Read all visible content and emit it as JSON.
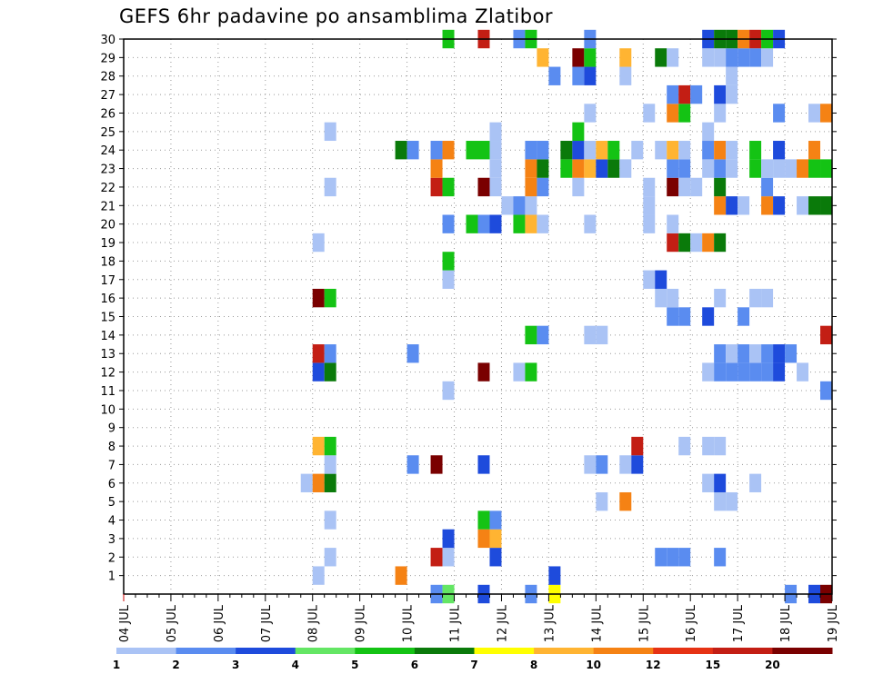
{
  "chart_data": {
    "type": "heatmap",
    "title": "GEFS 6hr padavine po ansamblima Zlatibor",
    "xlabel": "",
    "ylabel": "",
    "x_ticks": [
      "04 JUL",
      "05 JUL",
      "06 JUL",
      "07 JUL",
      "08 JUL",
      "09 JUL",
      "10 JUL",
      "11 JUL",
      "12 JUL",
      "13 JUL",
      "14 JUL",
      "15 JUL",
      "16 JUL",
      "17 JUL",
      "18 JUL",
      "19 JUL"
    ],
    "x_start": "04 JUL 00Z",
    "x_step_hours": 6,
    "y_ticks": [
      1,
      2,
      3,
      4,
      5,
      6,
      7,
      8,
      9,
      10,
      11,
      12,
      13,
      14,
      15,
      16,
      17,
      18,
      19,
      20,
      21,
      22,
      23,
      24,
      25,
      26,
      27,
      28,
      29,
      30
    ],
    "y_range": [
      0,
      30
    ],
    "legend": {
      "labels": [
        "1",
        "2",
        "3",
        "4",
        "5",
        "6",
        "7",
        "8",
        "10",
        "12",
        "15",
        "20"
      ],
      "colors": [
        "#aac3f5",
        "#5a8cf0",
        "#1e4bdc",
        "#64e664",
        "#14c314",
        "#0a7a0a",
        "#ffff00",
        "#ffb432",
        "#f58214",
        "#e63214",
        "#c31e14",
        "#7a0000"
      ]
    },
    "cells": [
      [
        26,
        0,
        2
      ],
      [
        27,
        0,
        4
      ],
      [
        30,
        0,
        3
      ],
      [
        36,
        0,
        7
      ],
      [
        34,
        0,
        2
      ],
      [
        58,
        0,
        3
      ],
      [
        56,
        0,
        2
      ],
      [
        59,
        0,
        20
      ],
      [
        16,
        1,
        1
      ],
      [
        23,
        1,
        10
      ],
      [
        36,
        1,
        3
      ],
      [
        17,
        2,
        1
      ],
      [
        26,
        2,
        15
      ],
      [
        27,
        2,
        1
      ],
      [
        31,
        2,
        3
      ],
      [
        45,
        2,
        2
      ],
      [
        46,
        2,
        2
      ],
      [
        47,
        2,
        2
      ],
      [
        50,
        2,
        2
      ],
      [
        27,
        3,
        3
      ],
      [
        30,
        3,
        10
      ],
      [
        31,
        3,
        8
      ],
      [
        17,
        4,
        1
      ],
      [
        30,
        4,
        5
      ],
      [
        31,
        4,
        2
      ],
      [
        40,
        5,
        1
      ],
      [
        42,
        5,
        10
      ],
      [
        50,
        5,
        1
      ],
      [
        51,
        5,
        1
      ],
      [
        15,
        6,
        1
      ],
      [
        16,
        6,
        10
      ],
      [
        17,
        6,
        6
      ],
      [
        49,
        6,
        1
      ],
      [
        50,
        6,
        3
      ],
      [
        53,
        6,
        1
      ],
      [
        17,
        7,
        1
      ],
      [
        24,
        7,
        2
      ],
      [
        26,
        7,
        20
      ],
      [
        30,
        7,
        3
      ],
      [
        39,
        7,
        1
      ],
      [
        40,
        7,
        2
      ],
      [
        42,
        7,
        1
      ],
      [
        43,
        7,
        3
      ],
      [
        16,
        8,
        8
      ],
      [
        17,
        8,
        5
      ],
      [
        43,
        8,
        15
      ],
      [
        47,
        8,
        1
      ],
      [
        49,
        8,
        1
      ],
      [
        50,
        8,
        1
      ],
      [
        27,
        11,
        1
      ],
      [
        59,
        11,
        2
      ],
      [
        16,
        12,
        3
      ],
      [
        17,
        12,
        6
      ],
      [
        30,
        12,
        20
      ],
      [
        33,
        12,
        1
      ],
      [
        34,
        12,
        5
      ],
      [
        49,
        12,
        1
      ],
      [
        50,
        12,
        2
      ],
      [
        51,
        12,
        2
      ],
      [
        52,
        12,
        2
      ],
      [
        53,
        12,
        2
      ],
      [
        54,
        12,
        2
      ],
      [
        55,
        12,
        3
      ],
      [
        57,
        12,
        1
      ],
      [
        16,
        13,
        15
      ],
      [
        17,
        13,
        2
      ],
      [
        24,
        13,
        2
      ],
      [
        50,
        13,
        2
      ],
      [
        51,
        13,
        1
      ],
      [
        52,
        13,
        2
      ],
      [
        53,
        13,
        1
      ],
      [
        54,
        13,
        2
      ],
      [
        55,
        13,
        3
      ],
      [
        56,
        13,
        2
      ],
      [
        34,
        14,
        5
      ],
      [
        35,
        14,
        2
      ],
      [
        39,
        14,
        1
      ],
      [
        40,
        14,
        1
      ],
      [
        59,
        14,
        15
      ],
      [
        46,
        15,
        2
      ],
      [
        47,
        15,
        2
      ],
      [
        49,
        15,
        3
      ],
      [
        52,
        15,
        2
      ],
      [
        16,
        16,
        20
      ],
      [
        17,
        16,
        5
      ],
      [
        45,
        16,
        1
      ],
      [
        46,
        16,
        1
      ],
      [
        50,
        16,
        1
      ],
      [
        53,
        16,
        1
      ],
      [
        54,
        16,
        1
      ],
      [
        27,
        17,
        1
      ],
      [
        44,
        17,
        1
      ],
      [
        45,
        17,
        3
      ],
      [
        27,
        18,
        5
      ],
      [
        16,
        19,
        1
      ],
      [
        46,
        19,
        15
      ],
      [
        47,
        19,
        6
      ],
      [
        48,
        19,
        1
      ],
      [
        49,
        19,
        10
      ],
      [
        50,
        19,
        6
      ],
      [
        27,
        20,
        2
      ],
      [
        29,
        20,
        5
      ],
      [
        30,
        20,
        2
      ],
      [
        31,
        20,
        3
      ],
      [
        33,
        20,
        5
      ],
      [
        34,
        20,
        8
      ],
      [
        35,
        20,
        1
      ],
      [
        39,
        20,
        1
      ],
      [
        44,
        20,
        1
      ],
      [
        46,
        20,
        1
      ],
      [
        32,
        21,
        1
      ],
      [
        33,
        21,
        2
      ],
      [
        34,
        21,
        1
      ],
      [
        44,
        21,
        1
      ],
      [
        50,
        21,
        10
      ],
      [
        51,
        21,
        3
      ],
      [
        52,
        21,
        1
      ],
      [
        54,
        21,
        10
      ],
      [
        55,
        21,
        3
      ],
      [
        57,
        21,
        1
      ],
      [
        58,
        21,
        6
      ],
      [
        59,
        21,
        6
      ],
      [
        17,
        22,
        1
      ],
      [
        26,
        22,
        15
      ],
      [
        27,
        22,
        5
      ],
      [
        30,
        22,
        20
      ],
      [
        31,
        22,
        1
      ],
      [
        34,
        22,
        10
      ],
      [
        35,
        22,
        2
      ],
      [
        38,
        22,
        1
      ],
      [
        44,
        22,
        1
      ],
      [
        46,
        22,
        20
      ],
      [
        47,
        22,
        1
      ],
      [
        48,
        22,
        1
      ],
      [
        50,
        22,
        6
      ],
      [
        54,
        22,
        2
      ],
      [
        26,
        23,
        10
      ],
      [
        31,
        23,
        1
      ],
      [
        34,
        23,
        10
      ],
      [
        35,
        23,
        6
      ],
      [
        37,
        23,
        5
      ],
      [
        38,
        23,
        10
      ],
      [
        39,
        23,
        8
      ],
      [
        40,
        23,
        3
      ],
      [
        41,
        23,
        6
      ],
      [
        42,
        23,
        1
      ],
      [
        46,
        23,
        2
      ],
      [
        47,
        23,
        2
      ],
      [
        49,
        23,
        1
      ],
      [
        50,
        23,
        2
      ],
      [
        51,
        23,
        1
      ],
      [
        53,
        23,
        5
      ],
      [
        54,
        23,
        1
      ],
      [
        55,
        23,
        1
      ],
      [
        56,
        23,
        1
      ],
      [
        57,
        23,
        10
      ],
      [
        58,
        23,
        5
      ],
      [
        59,
        23,
        5
      ],
      [
        23,
        24,
        6
      ],
      [
        24,
        24,
        2
      ],
      [
        26,
        24,
        2
      ],
      [
        27,
        24,
        10
      ],
      [
        29,
        24,
        5
      ],
      [
        30,
        24,
        5
      ],
      [
        31,
        24,
        1
      ],
      [
        34,
        24,
        2
      ],
      [
        35,
        24,
        2
      ],
      [
        37,
        24,
        6
      ],
      [
        38,
        24,
        3
      ],
      [
        39,
        24,
        1
      ],
      [
        40,
        24,
        8
      ],
      [
        41,
        24,
        5
      ],
      [
        43,
        24,
        1
      ],
      [
        45,
        24,
        1
      ],
      [
        46,
        24,
        8
      ],
      [
        47,
        24,
        1
      ],
      [
        49,
        24,
        2
      ],
      [
        50,
        24,
        10
      ],
      [
        51,
        24,
        1
      ],
      [
        53,
        24,
        5
      ],
      [
        55,
        24,
        3
      ],
      [
        58,
        24,
        10
      ],
      [
        17,
        25,
        1
      ],
      [
        31,
        25,
        1
      ],
      [
        38,
        25,
        5
      ],
      [
        49,
        25,
        1
      ],
      [
        39,
        26,
        1
      ],
      [
        44,
        26,
        1
      ],
      [
        46,
        26,
        10
      ],
      [
        47,
        26,
        5
      ],
      [
        50,
        26,
        1
      ],
      [
        55,
        26,
        2
      ],
      [
        58,
        26,
        1
      ],
      [
        59,
        26,
        10
      ],
      [
        46,
        27,
        2
      ],
      [
        47,
        27,
        15
      ],
      [
        48,
        27,
        2
      ],
      [
        50,
        27,
        3
      ],
      [
        51,
        27,
        1
      ],
      [
        36,
        28,
        2
      ],
      [
        38,
        28,
        2
      ],
      [
        39,
        28,
        3
      ],
      [
        42,
        28,
        1
      ],
      [
        51,
        28,
        1
      ],
      [
        35,
        29,
        8
      ],
      [
        38,
        29,
        20
      ],
      [
        39,
        29,
        5
      ],
      [
        42,
        29,
        8
      ],
      [
        45,
        29,
        6
      ],
      [
        46,
        29,
        1
      ],
      [
        49,
        29,
        1
      ],
      [
        50,
        29,
        1
      ],
      [
        51,
        29,
        2
      ],
      [
        52,
        29,
        2
      ],
      [
        53,
        29,
        2
      ],
      [
        54,
        29,
        1
      ],
      [
        27,
        30,
        5
      ],
      [
        30,
        30,
        15
      ],
      [
        33,
        30,
        2
      ],
      [
        34,
        30,
        5
      ],
      [
        39,
        30,
        2
      ],
      [
        49,
        30,
        3
      ],
      [
        50,
        30,
        6
      ],
      [
        51,
        30,
        6
      ],
      [
        52,
        30,
        10
      ],
      [
        53,
        30,
        15
      ],
      [
        54,
        30,
        5
      ],
      [
        55,
        30,
        3
      ]
    ]
  }
}
